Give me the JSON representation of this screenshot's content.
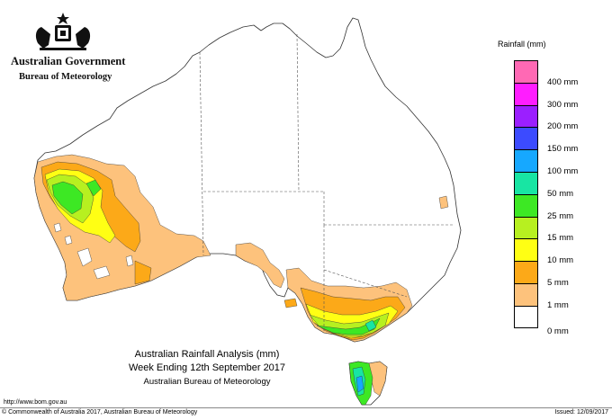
{
  "header": {
    "government": "Australian Government",
    "bureau": "Bureau of Meteorology"
  },
  "legend": {
    "title": "Rainfall (mm)",
    "items": [
      {
        "label": "",
        "color": "#ff69b4"
      },
      {
        "label": "400 mm",
        "color": "#ff1dff"
      },
      {
        "label": "300 mm",
        "color": "#9b1fff"
      },
      {
        "label": "200 mm",
        "color": "#3c4bff"
      },
      {
        "label": "150 mm",
        "color": "#16a8ff"
      },
      {
        "label": "100 mm",
        "color": "#18e5a3"
      },
      {
        "label": "50 mm",
        "color": "#3de824"
      },
      {
        "label": "25 mm",
        "color": "#b7f020"
      },
      {
        "label": "15 mm",
        "color": "#ffff14"
      },
      {
        "label": "10 mm",
        "color": "#fca918"
      },
      {
        "label": "5 mm",
        "color": "#fdc27c"
      },
      {
        "label": "1 mm",
        "color": "#ffffff"
      },
      {
        "label": "0 mm",
        "color": "#ffffff"
      }
    ]
  },
  "title": {
    "line1": "Australian Rainfall Analysis (mm)",
    "line2": "Week Ending 12th September 2017",
    "line3": "Australian Bureau of Meteorology"
  },
  "footer": {
    "url": "http://www.bom.gov.au",
    "copyright": "© Commonwealth of Australia 2017, Australian Bureau of Meteorology",
    "issued": "Issued: 12/09/2017"
  }
}
